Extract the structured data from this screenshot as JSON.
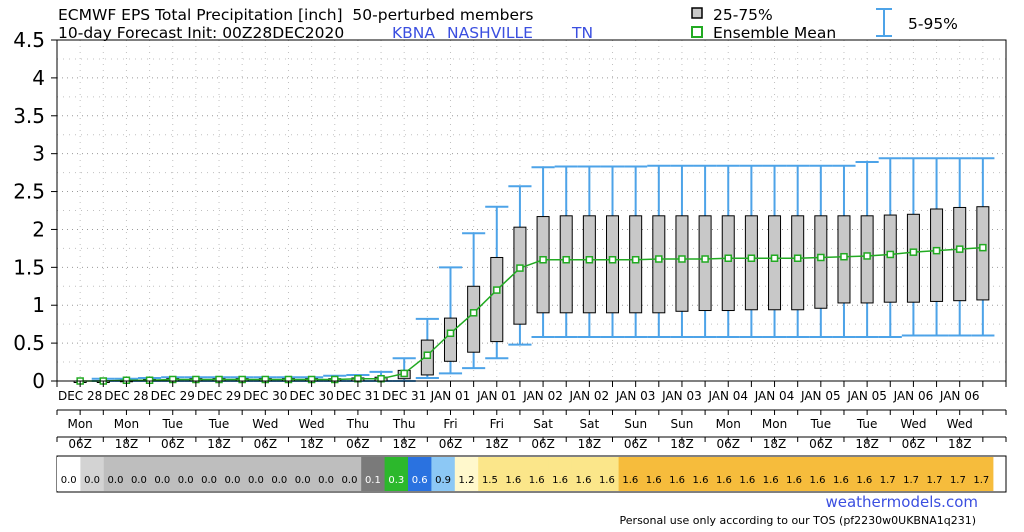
{
  "header": {
    "title": "ECMWF EPS Total Precipitation [inch]  50-perturbed members",
    "subtitle": "10-day Forecast Init: 00Z28DEC2020",
    "station_code": "KBNA",
    "station_name": "NASHVILLE",
    "station_state": "TN"
  },
  "legend": {
    "iqr": "25-75%",
    "mean": "Ensemble Mean",
    "whisker": "5-95%"
  },
  "footer": {
    "site": "weathermodels.com",
    "tos": "Personal use only according to our TOS (pf2230w0UKBNA1q231)"
  },
  "colors": {
    "mean_line": "#22aa22",
    "whisker": "#4da3e8",
    "box_fill": "#c8c8c8",
    "station_text": "#3b4fe0"
  },
  "chart_data": {
    "type": "box",
    "ylim": [
      0,
      4.5
    ],
    "yticks": [
      "0",
      "0.5",
      "1",
      "1.5",
      "2",
      "2.5",
      "3",
      "3.5",
      "4",
      "4.5"
    ],
    "grid": true,
    "steps": 41,
    "x_labels": [
      {
        "date": "DEC 28",
        "day": "Mon",
        "hour": "06Z"
      },
      {
        "date": "DEC 28",
        "day": "Mon",
        "hour": "18Z"
      },
      {
        "date": "DEC 29",
        "day": "Tue",
        "hour": "06Z"
      },
      {
        "date": "DEC 29",
        "day": "Tue",
        "hour": "18Z"
      },
      {
        "date": "DEC 30",
        "day": "Wed",
        "hour": "06Z"
      },
      {
        "date": "DEC 30",
        "day": "Wed",
        "hour": "18Z"
      },
      {
        "date": "DEC 31",
        "day": "Thu",
        "hour": "06Z"
      },
      {
        "date": "DEC 31",
        "day": "Thu",
        "hour": "18Z"
      },
      {
        "date": "JAN 01",
        "day": "Fri",
        "hour": "06Z"
      },
      {
        "date": "JAN 01",
        "day": "Fri",
        "hour": "18Z"
      },
      {
        "date": "JAN 02",
        "day": "Sat",
        "hour": "06Z"
      },
      {
        "date": "JAN 02",
        "day": "Sat",
        "hour": "18Z"
      },
      {
        "date": "JAN 03",
        "day": "Sun",
        "hour": "06Z"
      },
      {
        "date": "JAN 03",
        "day": "Sun",
        "hour": "18Z"
      },
      {
        "date": "JAN 04",
        "day": "Mon",
        "hour": "06Z"
      },
      {
        "date": "JAN 04",
        "day": "Mon",
        "hour": "18Z"
      },
      {
        "date": "JAN 05",
        "day": "Tue",
        "hour": "06Z"
      },
      {
        "date": "JAN 05",
        "day": "Tue",
        "hour": "18Z"
      },
      {
        "date": "JAN 06",
        "day": "Wed",
        "hour": "06Z"
      },
      {
        "date": "JAN 06",
        "day": "Wed",
        "hour": "18Z"
      }
    ],
    "mean": [
      0.0,
      0.0,
      0.01,
      0.01,
      0.02,
      0.02,
      0.02,
      0.02,
      0.02,
      0.02,
      0.02,
      0.02,
      0.03,
      0.03,
      0.1,
      0.34,
      0.63,
      0.9,
      1.2,
      1.49,
      1.6,
      1.6,
      1.6,
      1.6,
      1.6,
      1.61,
      1.61,
      1.61,
      1.62,
      1.62,
      1.62,
      1.62,
      1.63,
      1.64,
      1.65,
      1.67,
      1.7,
      1.72,
      1.74,
      1.76
    ],
    "q25": [
      0,
      0,
      0,
      0,
      0,
      0,
      0,
      0,
      0,
      0,
      0,
      0,
      0,
      0,
      0.03,
      0.08,
      0.26,
      0.38,
      0.52,
      0.75,
      0.9,
      0.9,
      0.9,
      0.9,
      0.9,
      0.9,
      0.92,
      0.93,
      0.93,
      0.94,
      0.94,
      0.94,
      0.96,
      1.03,
      1.03,
      1.04,
      1.04,
      1.05,
      1.06,
      1.07
    ],
    "q75": [
      0,
      0,
      0.01,
      0.02,
      0.03,
      0.03,
      0.03,
      0.03,
      0.03,
      0.03,
      0.03,
      0.03,
      0.04,
      0.05,
      0.14,
      0.54,
      0.83,
      1.25,
      1.63,
      2.03,
      2.17,
      2.18,
      2.18,
      2.18,
      2.18,
      2.18,
      2.18,
      2.18,
      2.18,
      2.18,
      2.18,
      2.18,
      2.18,
      2.18,
      2.18,
      2.19,
      2.2,
      2.27,
      2.29,
      2.3
    ],
    "p05": [
      0,
      0,
      0,
      0,
      0,
      0,
      0,
      0,
      0,
      0,
      0,
      0,
      0,
      0,
      0,
      0.04,
      0.1,
      0.17,
      0.3,
      0.48,
      0.58,
      0.58,
      0.58,
      0.58,
      0.58,
      0.58,
      0.58,
      0.58,
      0.58,
      0.58,
      0.58,
      0.58,
      0.58,
      0.58,
      0.58,
      0.58,
      0.6,
      0.6,
      0.6,
      0.6
    ],
    "p95": [
      0.02,
      0.03,
      0.03,
      0.04,
      0.05,
      0.05,
      0.05,
      0.05,
      0.05,
      0.05,
      0.05,
      0.07,
      0.08,
      0.12,
      0.3,
      0.82,
      1.5,
      1.95,
      2.3,
      2.57,
      2.82,
      2.83,
      2.83,
      2.83,
      2.83,
      2.84,
      2.84,
      2.84,
      2.84,
      2.84,
      2.84,
      2.84,
      2.84,
      2.84,
      2.89,
      2.94,
      2.94,
      2.94,
      2.94,
      2.94
    ],
    "strip": [
      {
        "text": "0.0",
        "color": "#ffffff"
      },
      {
        "text": "0.0",
        "color": "#d3d3d3"
      },
      {
        "text": "0.0",
        "color": "#bebebe"
      },
      {
        "text": "0.0",
        "color": "#bebebe"
      },
      {
        "text": "0.0",
        "color": "#bebebe"
      },
      {
        "text": "0.0",
        "color": "#bebebe"
      },
      {
        "text": "0.0",
        "color": "#bebebe"
      },
      {
        "text": "0.0",
        "color": "#bebebe"
      },
      {
        "text": "0.0",
        "color": "#bebebe"
      },
      {
        "text": "0.0",
        "color": "#bebebe"
      },
      {
        "text": "0.0",
        "color": "#bebebe"
      },
      {
        "text": "0.0",
        "color": "#bebebe"
      },
      {
        "text": "0.0",
        "color": "#bebebe"
      },
      {
        "text": "0.1",
        "color": "#7a7a7a"
      },
      {
        "text": "0.3",
        "color": "#2cb82c"
      },
      {
        "text": "0.6",
        "color": "#2a72e0"
      },
      {
        "text": "0.9",
        "color": "#8cc8f5"
      },
      {
        "text": "1.2",
        "color": "#fff8cc"
      },
      {
        "text": "1.5",
        "color": "#fbe68a"
      },
      {
        "text": "1.6",
        "color": "#fbe68a"
      },
      {
        "text": "1.6",
        "color": "#fbe68a"
      },
      {
        "text": "1.6",
        "color": "#fbe68a"
      },
      {
        "text": "1.6",
        "color": "#fbe68a"
      },
      {
        "text": "1.6",
        "color": "#fbe68a"
      },
      {
        "text": "1.6",
        "color": "#f6bc3c"
      },
      {
        "text": "1.6",
        "color": "#f6bc3c"
      },
      {
        "text": "1.6",
        "color": "#f6bc3c"
      },
      {
        "text": "1.6",
        "color": "#f6bc3c"
      },
      {
        "text": "1.6",
        "color": "#f6bc3c"
      },
      {
        "text": "1.6",
        "color": "#f6bc3c"
      },
      {
        "text": "1.6",
        "color": "#f6bc3c"
      },
      {
        "text": "1.6",
        "color": "#f6bc3c"
      },
      {
        "text": "1.6",
        "color": "#f6bc3c"
      },
      {
        "text": "1.6",
        "color": "#f6bc3c"
      },
      {
        "text": "1.6",
        "color": "#f6bc3c"
      },
      {
        "text": "1.7",
        "color": "#f6bc3c"
      },
      {
        "text": "1.7",
        "color": "#f6bc3c"
      },
      {
        "text": "1.7",
        "color": "#f6bc3c"
      },
      {
        "text": "1.7",
        "color": "#f6bc3c"
      },
      {
        "text": "1.7",
        "color": "#f6bc3c"
      }
    ]
  }
}
